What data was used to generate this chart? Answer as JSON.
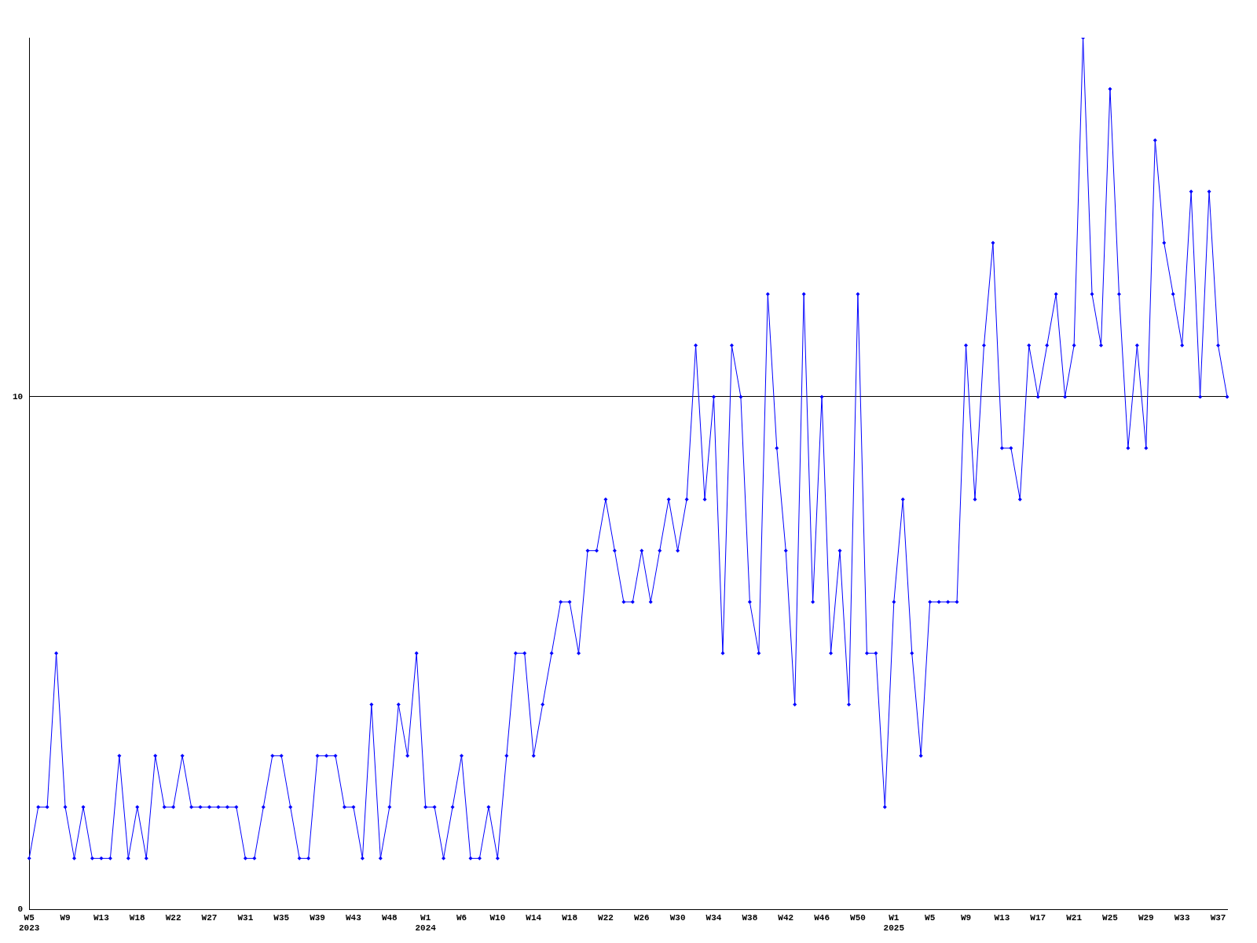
{
  "chart_data": {
    "type": "line",
    "categories": [
      "W5\n2023",
      null,
      null,
      null,
      "W9",
      null,
      null,
      null,
      "W13",
      null,
      null,
      null,
      "W18",
      null,
      null,
      null,
      "W22",
      null,
      null,
      null,
      "W27",
      null,
      null,
      null,
      "W31",
      null,
      null,
      null,
      "W35",
      null,
      null,
      null,
      "W39",
      null,
      null,
      null,
      "W43",
      null,
      null,
      null,
      "W48",
      null,
      null,
      null,
      "W1\n2024",
      null,
      null,
      null,
      "W6",
      null,
      null,
      null,
      "W10",
      null,
      null,
      null,
      "W14",
      null,
      null,
      null,
      "W18",
      null,
      null,
      null,
      "W22",
      null,
      null,
      null,
      "W26",
      null,
      null,
      null,
      "W30",
      null,
      null,
      null,
      "W34",
      null,
      null,
      null,
      "W38",
      null,
      null,
      null,
      "W42",
      null,
      null,
      null,
      "W46",
      null,
      null,
      null,
      "W50",
      null,
      null,
      null,
      "W1\n2025",
      null,
      null,
      null,
      "W5",
      null,
      null,
      null,
      "W9",
      null,
      null,
      null,
      "W13",
      null,
      null,
      null,
      "W17",
      null,
      null,
      null,
      "W21",
      null,
      null,
      null,
      "W25",
      null,
      null,
      null,
      "W29",
      null,
      null,
      null,
      "W33",
      null,
      null,
      null,
      "W37",
      null
    ],
    "series": [
      {
        "color": "#0000ff",
        "values": [
          1,
          2,
          2,
          5,
          2,
          1,
          2,
          1,
          1,
          1,
          3,
          1,
          2,
          1,
          3,
          2,
          2,
          3,
          2,
          2,
          2,
          2,
          2,
          2,
          1,
          1,
          2,
          3,
          3,
          2,
          1,
          1,
          3,
          3,
          3,
          2,
          2,
          1,
          4,
          1,
          2,
          4,
          3,
          5,
          2,
          2,
          1,
          2,
          3,
          1,
          1,
          2,
          1,
          3,
          5,
          5,
          3,
          4,
          5,
          6,
          6,
          5,
          7,
          7,
          8,
          7,
          6,
          6,
          7,
          6,
          7,
          8,
          7,
          8,
          11,
          8,
          10,
          5,
          11,
          10,
          6,
          5,
          12,
          9,
          7,
          4,
          12,
          6,
          10,
          5,
          7,
          4,
          12,
          5,
          5,
          2,
          6,
          8,
          5,
          3,
          6,
          6,
          6,
          6,
          11,
          8,
          11,
          13,
          9,
          9,
          8,
          11,
          10,
          11,
          12,
          10,
          11,
          17,
          12,
          11,
          16,
          12,
          9,
          11,
          9,
          15,
          13,
          12,
          11,
          14,
          10,
          14,
          11,
          10
        ]
      }
    ],
    "ylim": [
      0,
      17
    ],
    "yticks": [
      0,
      10
    ],
    "grid": "y",
    "legend": false,
    "marker": "diamond",
    "line_style": "solid"
  }
}
